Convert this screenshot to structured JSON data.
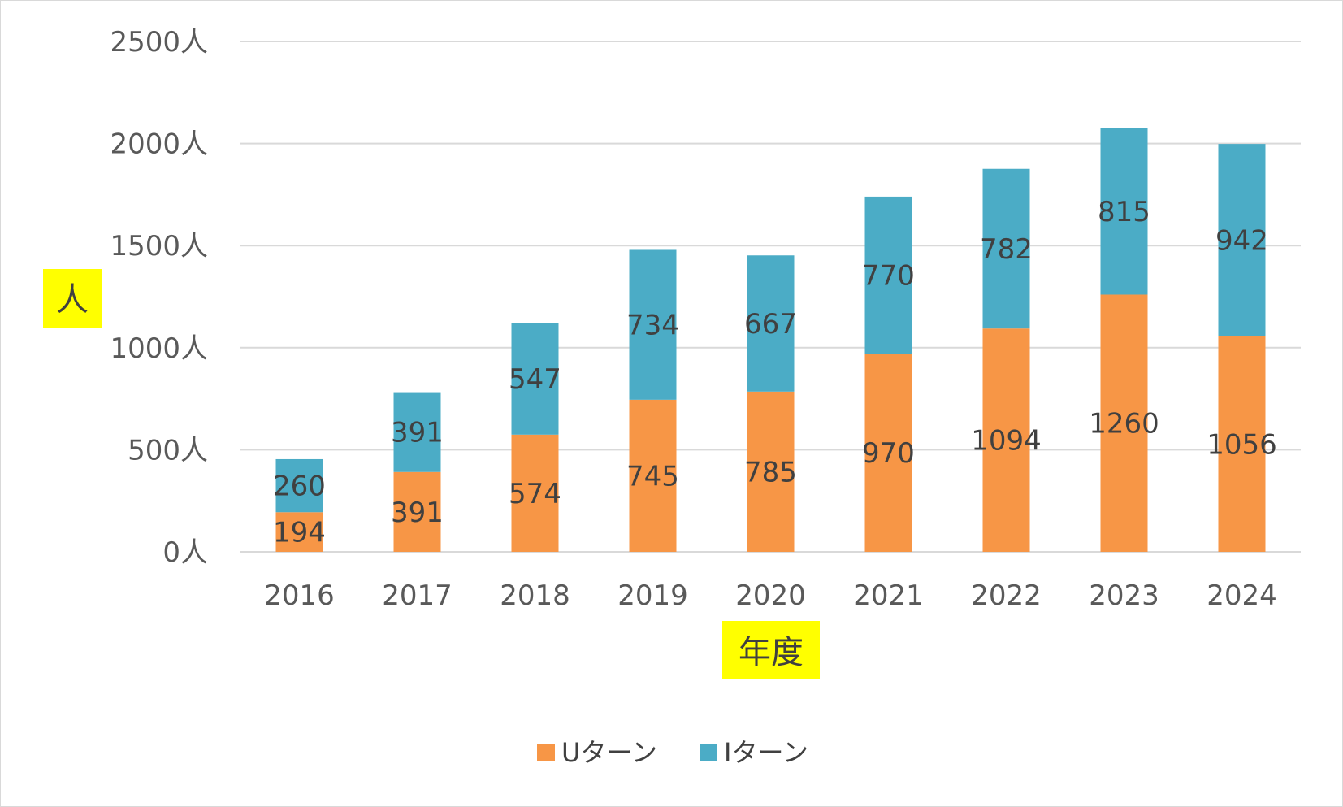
{
  "chart_data": {
    "type": "bar",
    "stacked": true,
    "title": "",
    "xlabel": "年度",
    "ylabel": "人",
    "categories": [
      "2016",
      "2017",
      "2018",
      "2019",
      "2020",
      "2021",
      "2022",
      "2023",
      "2024"
    ],
    "series": [
      {
        "name": "Uターン",
        "color": "#f79646",
        "values": [
          194,
          391,
          574,
          745,
          785,
          970,
          1094,
          1260,
          1056
        ]
      },
      {
        "name": "Iターン",
        "color": "#4bacc6",
        "values": [
          260,
          391,
          547,
          734,
          667,
          770,
          782,
          815,
          942
        ]
      }
    ],
    "ylim": [
      0,
      2500
    ],
    "yticks": [
      0,
      500,
      1000,
      1500,
      2000,
      2500
    ],
    "ytick_suffix": "人",
    "grid": true,
    "legend_position": "bottom",
    "axis_title_highlight_color": "#ffff00",
    "gridline_color": "#d9d9d9"
  }
}
